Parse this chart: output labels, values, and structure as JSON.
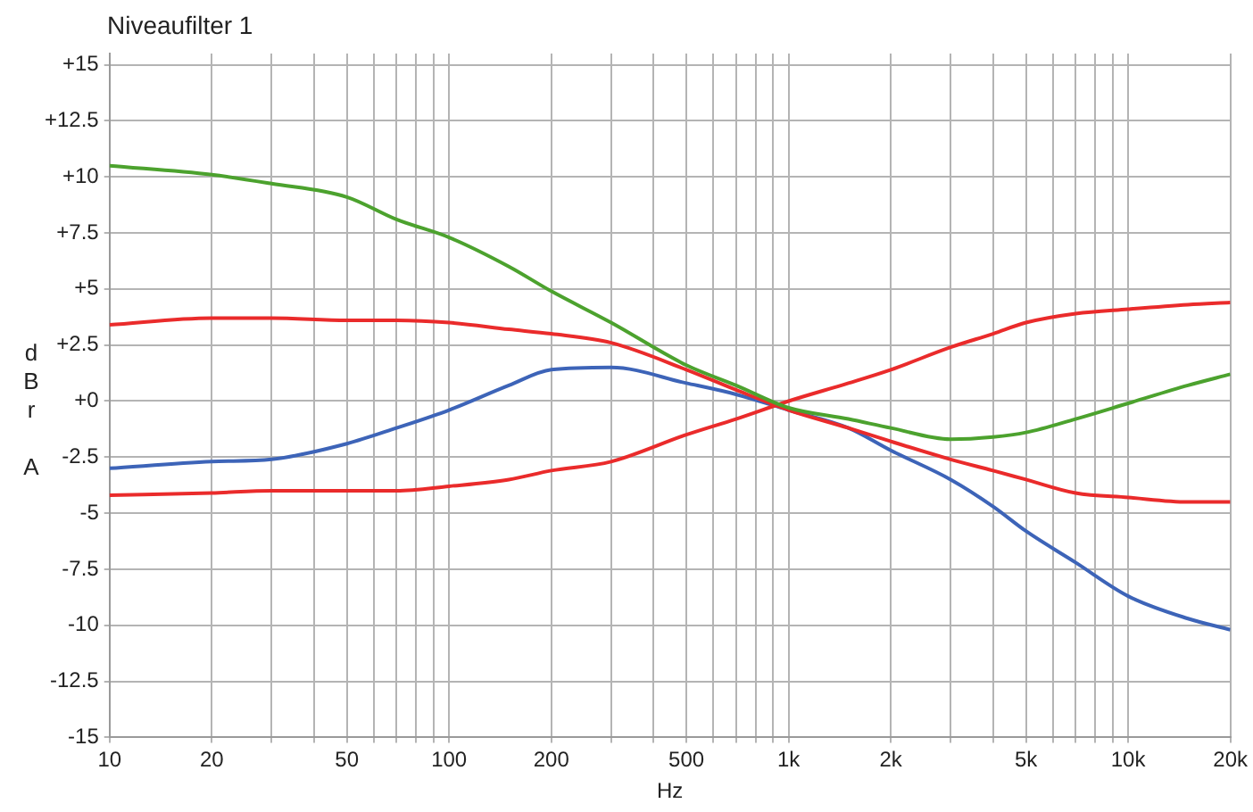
{
  "chart_data": {
    "type": "line",
    "title": "Niveaufilter 1",
    "xlabel": "Hz",
    "ylabel": "dBr A",
    "log": "x",
    "grid": true,
    "legend": false,
    "marker": "none",
    "line_style": "solid",
    "xlim": [
      10,
      20000
    ],
    "xticks": [
      10,
      20,
      {
        "value": 30,
        "label": null
      },
      {
        "value": 40,
        "label": null
      },
      50,
      {
        "value": 60,
        "label": null
      },
      {
        "value": 70,
        "label": null
      },
      {
        "value": 80,
        "label": null
      },
      {
        "value": 90,
        "label": null
      },
      100,
      200,
      {
        "value": 300,
        "label": null
      },
      {
        "value": 400,
        "label": null
      },
      500,
      {
        "value": 600,
        "label": null
      },
      {
        "value": 700,
        "label": null
      },
      {
        "value": 800,
        "label": null
      },
      {
        "value": 900,
        "label": null
      },
      {
        "value": 1000,
        "label": "1k"
      },
      {
        "value": 2000,
        "label": "2k"
      },
      {
        "value": 3000,
        "label": null
      },
      {
        "value": 4000,
        "label": null
      },
      {
        "value": 5000,
        "label": "5k"
      },
      {
        "value": 6000,
        "label": null
      },
      {
        "value": 7000,
        "label": null
      },
      {
        "value": 8000,
        "label": null
      },
      {
        "value": 9000,
        "label": null
      },
      {
        "value": 10000,
        "label": "10k"
      },
      {
        "value": 20000,
        "label": "20k"
      }
    ],
    "ylim": [
      -15,
      15.5
    ],
    "yticks": [
      {
        "value": 15,
        "label": "+15"
      },
      {
        "value": 12.5,
        "label": "+12.5"
      },
      {
        "value": 10,
        "label": "+10"
      },
      {
        "value": 7.5,
        "label": "+7.5"
      },
      {
        "value": 5,
        "label": "+5"
      },
      {
        "value": 2.5,
        "label": "+2.5"
      },
      {
        "value": 0,
        "label": "+0"
      },
      -2.5,
      -5,
      -7.5,
      -10,
      -12.5,
      -15
    ],
    "x": [
      10,
      20,
      30,
      50,
      70,
      100,
      150,
      200,
      300,
      500,
      700,
      1000,
      1500,
      2000,
      3000,
      4000,
      5000,
      7000,
      10000,
      15000,
      20000
    ],
    "series": [
      {
        "color": "#4ca22e",
        "values": [
          10.5,
          10.1,
          9.7,
          9.1,
          8.1,
          7.3,
          6.0,
          4.9,
          3.5,
          1.6,
          0.7,
          -0.3,
          -0.8,
          -1.2,
          -1.7,
          -1.6,
          -1.4,
          -0.8,
          -0.1,
          0.7,
          1.2
        ]
      },
      {
        "color": "#ea2b2b",
        "values": [
          3.4,
          3.7,
          3.7,
          3.6,
          3.6,
          3.5,
          3.2,
          3.0,
          2.6,
          1.4,
          0.5,
          -0.4,
          -1.2,
          -1.8,
          -2.6,
          -3.1,
          -3.5,
          -4.1,
          -4.3,
          -4.5,
          -4.5
        ]
      },
      {
        "color": "#ea2b2b",
        "values": [
          -4.2,
          -4.1,
          -4.0,
          -4.0,
          -4.0,
          -3.8,
          -3.5,
          -3.1,
          -2.7,
          -1.5,
          -0.8,
          0.0,
          0.8,
          1.4,
          2.4,
          3.0,
          3.5,
          3.9,
          4.1,
          4.3,
          4.4
        ]
      },
      {
        "color": "#3d64b8",
        "values": [
          -3.0,
          -2.7,
          -2.6,
          -1.9,
          -1.2,
          -0.4,
          0.7,
          1.4,
          1.5,
          0.8,
          0.3,
          -0.4,
          -1.2,
          -2.2,
          -3.5,
          -4.7,
          -5.8,
          -7.2,
          -8.7,
          -9.7,
          -10.2
        ]
      }
    ]
  }
}
